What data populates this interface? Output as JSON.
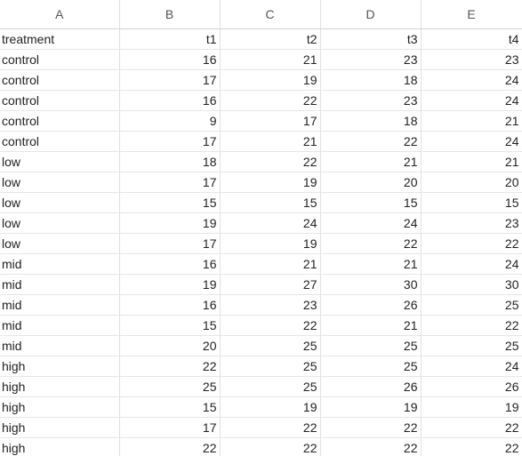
{
  "columns": [
    "A",
    "B",
    "C",
    "D",
    "E"
  ],
  "header_row": [
    "treatment",
    "t1",
    "t2",
    "t3",
    "t4"
  ],
  "rows": [
    [
      "control",
      "16",
      "21",
      "23",
      "23"
    ],
    [
      "control",
      "17",
      "19",
      "18",
      "24"
    ],
    [
      "control",
      "16",
      "22",
      "23",
      "24"
    ],
    [
      "control",
      "9",
      "17",
      "18",
      "21"
    ],
    [
      "control",
      "17",
      "21",
      "22",
      "24"
    ],
    [
      "low",
      "18",
      "22",
      "21",
      "21"
    ],
    [
      "low",
      "17",
      "19",
      "20",
      "20"
    ],
    [
      "low",
      "15",
      "15",
      "15",
      "15"
    ],
    [
      "low",
      "19",
      "24",
      "24",
      "23"
    ],
    [
      "low",
      "17",
      "19",
      "22",
      "22"
    ],
    [
      "mid",
      "16",
      "21",
      "21",
      "24"
    ],
    [
      "mid",
      "19",
      "27",
      "30",
      "30"
    ],
    [
      "mid",
      "16",
      "23",
      "26",
      "25"
    ],
    [
      "mid",
      "15",
      "22",
      "21",
      "22"
    ],
    [
      "mid",
      "20",
      "25",
      "25",
      "25"
    ],
    [
      "high",
      "22",
      "25",
      "25",
      "24"
    ],
    [
      "high",
      "25",
      "25",
      "26",
      "26"
    ],
    [
      "high",
      "15",
      "19",
      "19",
      "19"
    ],
    [
      "high",
      "17",
      "22",
      "22",
      "22"
    ],
    [
      "high",
      "22",
      "22",
      "22",
      "22"
    ]
  ]
}
